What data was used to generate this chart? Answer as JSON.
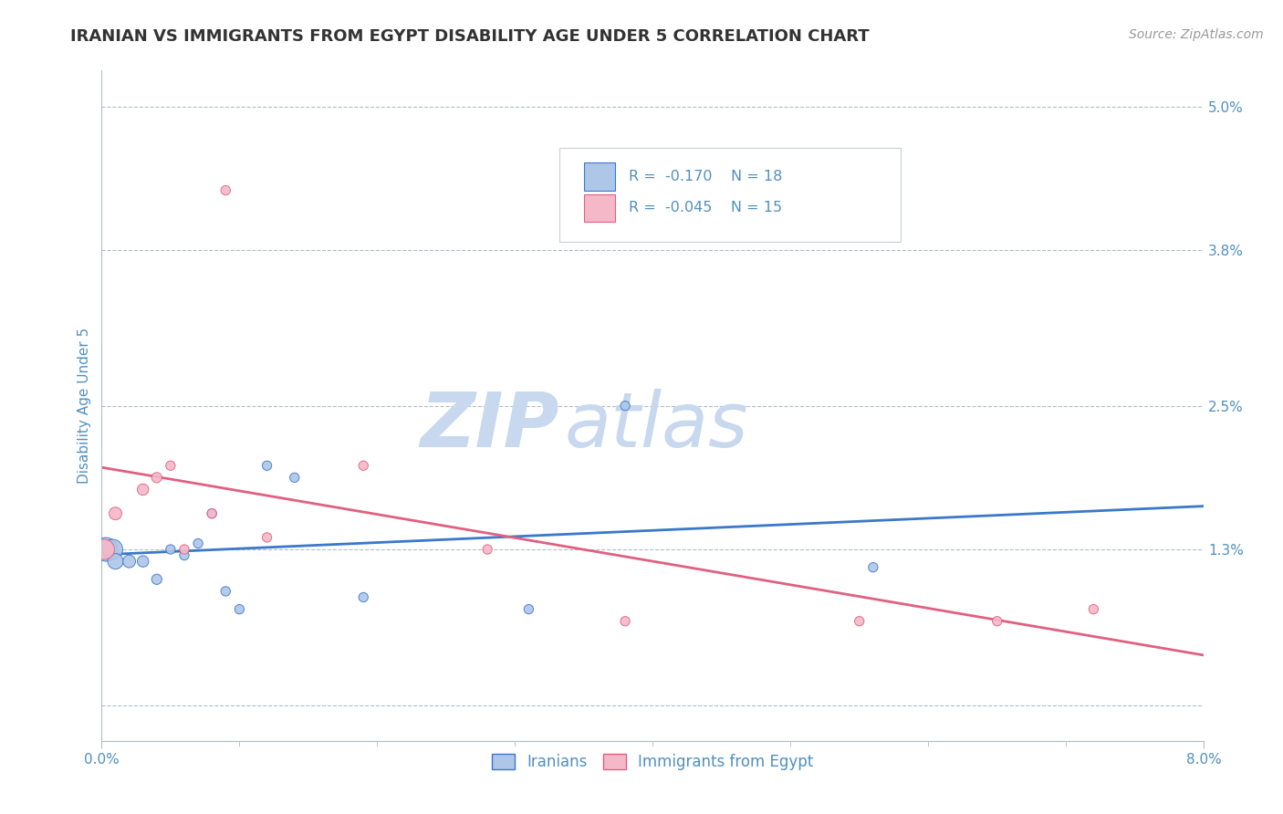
{
  "title": "IRANIAN VS IMMIGRANTS FROM EGYPT DISABILITY AGE UNDER 5 CORRELATION CHART",
  "source": "Source: ZipAtlas.com",
  "ylabel": "Disability Age Under 5",
  "xlim": [
    0.0,
    0.08
  ],
  "ylim": [
    -0.003,
    0.053
  ],
  "yticks": [
    0.0,
    0.013,
    0.025,
    0.038,
    0.05
  ],
  "ytick_labels": [
    "",
    "1.3%",
    "2.5%",
    "3.8%",
    "5.0%"
  ],
  "iranians_x": [
    0.0003,
    0.0008,
    0.001,
    0.002,
    0.003,
    0.004,
    0.005,
    0.006,
    0.007,
    0.008,
    0.009,
    0.01,
    0.012,
    0.014,
    0.019,
    0.031,
    0.038,
    0.056
  ],
  "iranians_y": [
    0.013,
    0.013,
    0.012,
    0.012,
    0.012,
    0.0105,
    0.013,
    0.0125,
    0.0135,
    0.016,
    0.0095,
    0.008,
    0.02,
    0.019,
    0.009,
    0.008,
    0.025,
    0.0115
  ],
  "iranians_size": [
    350,
    250,
    150,
    100,
    80,
    65,
    55,
    55,
    55,
    55,
    55,
    55,
    55,
    55,
    55,
    55,
    55,
    55
  ],
  "egypt_x": [
    0.0002,
    0.001,
    0.003,
    0.004,
    0.005,
    0.006,
    0.008,
    0.009,
    0.012,
    0.019,
    0.028,
    0.038,
    0.055,
    0.065,
    0.072
  ],
  "egypt_y": [
    0.013,
    0.016,
    0.018,
    0.019,
    0.02,
    0.013,
    0.016,
    0.043,
    0.014,
    0.02,
    0.013,
    0.007,
    0.007,
    0.007,
    0.008
  ],
  "egypt_size": [
    250,
    100,
    80,
    65,
    55,
    55,
    55,
    55,
    55,
    55,
    55,
    55,
    55,
    55,
    55
  ],
  "iranian_R": "-0.170",
  "iranian_N": "18",
  "egypt_R": "-0.045",
  "egypt_N": "15",
  "iranian_color": "#aec6e8",
  "egypt_color": "#f5b8c8",
  "iranian_line_color": "#3a78c9",
  "egypt_line_color": "#e06080",
  "watermark_zip": "ZIP",
  "watermark_atlas": "atlas",
  "watermark_color": "#c8d8ee",
  "background_color": "#ffffff",
  "grid_color": "#b0bec8",
  "title_color": "#333333",
  "axis_label_color": "#5090c0",
  "tick_color": "#5090c0",
  "source_color": "#999999"
}
